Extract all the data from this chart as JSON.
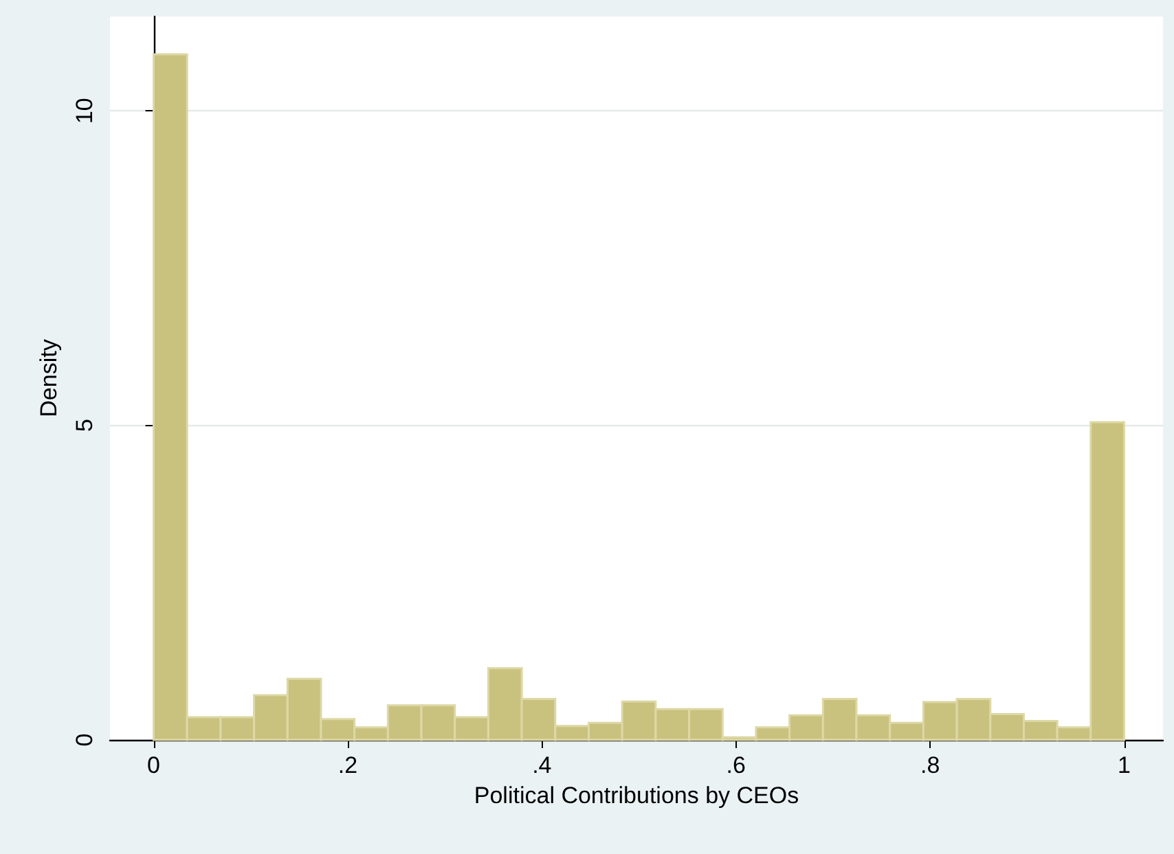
{
  "chart_data": {
    "type": "histogram",
    "xlabel": "Political Contributions by CEOs",
    "ylabel": "Density",
    "bins": [
      0,
      0.034483,
      0.068966,
      0.103448,
      0.137931,
      0.172414,
      0.206897,
      0.241379,
      0.275862,
      0.310345,
      0.344828,
      0.37931,
      0.413793,
      0.448276,
      0.482759,
      0.517241,
      0.551724,
      0.586207,
      0.62069,
      0.655172,
      0.689655,
      0.724138,
      0.758621,
      0.793103,
      0.827586,
      0.862069,
      0.896552,
      0.931034,
      0.965517,
      1
    ],
    "values": [
      10.9,
      0.36,
      0.36,
      0.71,
      0.97,
      0.33,
      0.2,
      0.55,
      0.55,
      0.36,
      1.14,
      0.65,
      0.22,
      0.27,
      0.61,
      0.49,
      0.49,
      0.04,
      0.2,
      0.39,
      0.65,
      0.39,
      0.27,
      0.6,
      0.65,
      0.41,
      0.3,
      0.2,
      5.05
    ],
    "color": "#c9c27e",
    "xlim": [
      -0.045,
      1.04
    ],
    "xticks": [
      0,
      {
        "value": 0.2,
        "label": ".2"
      },
      {
        "value": 0.4,
        "label": ".4"
      },
      {
        "value": 0.6,
        "label": ".6"
      },
      {
        "value": 0.8,
        "label": ".8"
      },
      1
    ],
    "ylim": [
      0,
      11.5
    ],
    "yticks": [
      0,
      5,
      10
    ],
    "grid": "y"
  }
}
